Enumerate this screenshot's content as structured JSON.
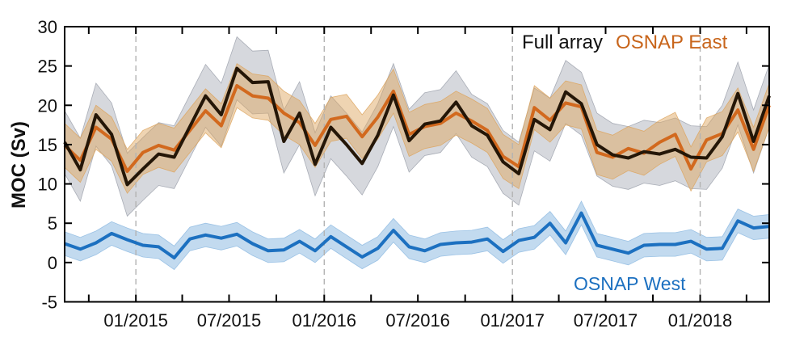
{
  "figure": {
    "ylabel": "MOC (Sv)",
    "legend": {
      "full_array": "Full array",
      "osnap_east": "OSNAP East",
      "osnap_west": "OSNAP West"
    },
    "colors": {
      "full_array_line": "#241607",
      "osnap_east_line": "#d2691e",
      "osnap_west_line": "#1c70c0",
      "full_array_band": "#9ea2ad",
      "osnap_east_band": "#dda55e",
      "osnap_west_band": "#8fbbe2",
      "legend_full_array_text": "#111111",
      "legend_osnap_east_text": "#c8651b",
      "legend_osnap_west_text": "#1c70c0",
      "gridline": "#b3b3b3",
      "axis": "#000000",
      "tick_label": "#111111"
    }
  },
  "chart_data": {
    "type": "line",
    "title": "",
    "xlabel": "",
    "ylabel": "MOC (Sv)",
    "ylim": [
      -5,
      30
    ],
    "y_ticks": [
      30,
      25,
      20,
      15,
      10,
      5,
      0,
      -5
    ],
    "grid": "vertical dashed gridlines at each January",
    "legend_position": "inside top-right (text only), OSNAP West labeled near bottom",
    "bands": "shaded uncertainty envelope around each monthly line",
    "x": [
      "08/2014",
      "09/2014",
      "10/2014",
      "11/2014",
      "12/2014",
      "01/2015",
      "02/2015",
      "03/2015",
      "04/2015",
      "05/2015",
      "06/2015",
      "07/2015",
      "08/2015",
      "09/2015",
      "10/2015",
      "11/2015",
      "12/2015",
      "01/2016",
      "02/2016",
      "03/2016",
      "04/2016",
      "05/2016",
      "06/2016",
      "07/2016",
      "08/2016",
      "09/2016",
      "10/2016",
      "11/2016",
      "12/2016",
      "01/2017",
      "02/2017",
      "03/2017",
      "04/2017",
      "05/2017",
      "06/2017",
      "07/2017",
      "08/2017",
      "09/2017",
      "10/2017",
      "11/2017",
      "12/2017",
      "01/2018",
      "02/2018",
      "03/2018",
      "04/2018",
      "05/2018"
    ],
    "series": [
      {
        "name": "Full array",
        "color": "#241607",
        "band_halfwidth": 4.0,
        "values": [
          15.3,
          11.8,
          18.8,
          16.3,
          9.9,
          11.9,
          13.8,
          13.4,
          17.3,
          21.2,
          18.8,
          24.7,
          22.9,
          23.0,
          15.4,
          19.0,
          12.5,
          17.2,
          15.0,
          12.6,
          16.2,
          21.3,
          15.5,
          17.6,
          18.0,
          20.4,
          17.4,
          16.2,
          12.8,
          11.3,
          18.2,
          16.9,
          21.7,
          20.2,
          15.0,
          13.7,
          13.3,
          14.1,
          13.8,
          14.4,
          13.4,
          13.3,
          16.0,
          21.5,
          15.4,
          21.2
        ]
      },
      {
        "name": "OSNAP East",
        "color": "#d2691e",
        "band_halfwidth": 2.8,
        "values": [
          14.9,
          13.0,
          17.2,
          15.7,
          11.6,
          14.0,
          14.9,
          14.3,
          16.8,
          19.3,
          17.4,
          22.5,
          21.2,
          20.9,
          19.0,
          17.8,
          14.9,
          18.2,
          18.6,
          16.0,
          18.5,
          21.8,
          16.3,
          17.3,
          17.7,
          19.0,
          18.0,
          16.8,
          13.5,
          12.2,
          19.7,
          18.1,
          20.3,
          19.8,
          14.0,
          13.4,
          14.5,
          13.9,
          15.3,
          16.3,
          11.9,
          15.6,
          16.4,
          19.4,
          14.4,
          20.0
        ]
      },
      {
        "name": "OSNAP West",
        "color": "#1c70c0",
        "band_halfwidth": 1.5,
        "values": [
          2.4,
          1.7,
          2.5,
          3.7,
          2.9,
          2.2,
          2.0,
          0.6,
          3.0,
          3.5,
          3.1,
          3.6,
          2.4,
          1.5,
          1.6,
          2.7,
          1.5,
          3.3,
          2.0,
          0.7,
          1.8,
          4.1,
          2.0,
          1.5,
          2.3,
          2.5,
          2.6,
          3.0,
          1.4,
          2.8,
          3.2,
          5.0,
          2.5,
          6.3,
          2.2,
          1.7,
          1.2,
          2.2,
          2.3,
          2.3,
          2.7,
          1.7,
          1.8,
          5.3,
          4.4,
          4.6
        ]
      }
    ],
    "x_tick_positions_month_index": [
      1.54,
      4.55,
      7.51,
      10.5,
      13.52,
      16.58,
      19.57,
      22.56,
      25.58,
      28.6,
      31.56,
      34.55,
      37.57,
      40.59,
      43.55
    ],
    "x_tick_labels": [
      "",
      "01/2015",
      "",
      "07/2015",
      "",
      "01/2016",
      "",
      "07/2016",
      "",
      "01/2017",
      "",
      "07/2017",
      "",
      "01/2018",
      ""
    ],
    "gridline_positions_month_index": [
      4.55,
      16.58,
      28.6,
      40.59
    ]
  }
}
